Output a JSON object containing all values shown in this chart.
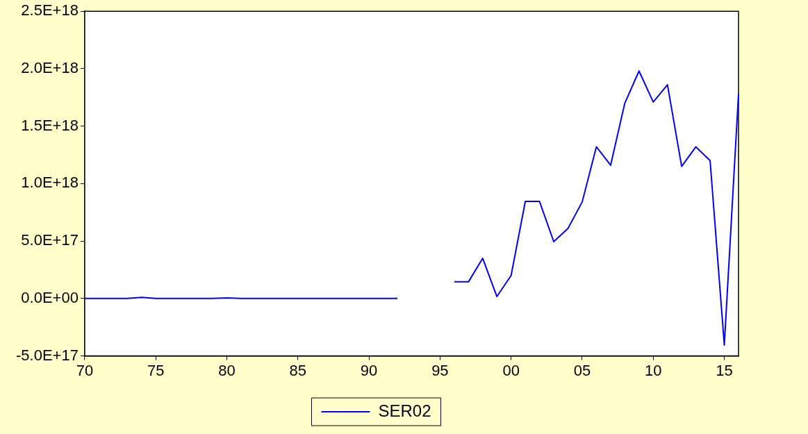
{
  "chart_data": {
    "type": "line",
    "legend": "bottom",
    "marker": "none",
    "line_style": "solid",
    "x": [
      1970,
      1971,
      1972,
      1973,
      1974,
      1975,
      1976,
      1977,
      1978,
      1979,
      1980,
      1981,
      1982,
      1983,
      1984,
      1985,
      1986,
      1987,
      1988,
      1989,
      1990,
      1991,
      1992,
      1993,
      1994,
      1995,
      1996,
      1997,
      1998,
      1999,
      2000,
      2001,
      2002,
      2003,
      2004,
      2005,
      2006,
      2007,
      2008,
      2009,
      2010,
      2011,
      2012,
      2013,
      2014,
      2015,
      2016
    ],
    "series": [
      {
        "name": "SER02",
        "color": "#0000ff",
        "values": [
          0,
          0,
          0,
          0,
          1e+16,
          0,
          0,
          0,
          0,
          0,
          5000000000000000.0,
          0,
          0,
          0,
          0,
          0,
          0,
          0,
          0,
          0,
          0,
          0,
          0,
          null,
          null,
          null,
          1.45e+17,
          1.45e+17,
          3.5e+17,
          1.7e+16,
          2e+17,
          8.45e+17,
          8.45e+17,
          4.95e+17,
          6.1e+17,
          8.4e+17,
          1.32e+18,
          1.16e+18,
          1.7e+18,
          1.98e+18,
          1.71e+18,
          1.86e+18,
          1.15e+18,
          1.32e+18,
          1.2e+18,
          -4.05e+17,
          1.78e+18
        ]
      }
    ],
    "xlim": [
      1970,
      2016
    ],
    "xticks": [
      {
        "value": 1970,
        "label": "70"
      },
      {
        "value": 1975,
        "label": "75"
      },
      {
        "value": 1980,
        "label": "80"
      },
      {
        "value": 1985,
        "label": "85"
      },
      {
        "value": 1990,
        "label": "90"
      },
      {
        "value": 1995,
        "label": "95"
      },
      {
        "value": 2000,
        "label": "00"
      },
      {
        "value": 2005,
        "label": "05"
      },
      {
        "value": 2010,
        "label": "10"
      },
      {
        "value": 2015,
        "label": "15"
      }
    ],
    "ylim": [
      -5e+17,
      2.5e+18
    ],
    "yticks": [
      {
        "value": -5e+17,
        "label": "-5.0E+17"
      },
      {
        "value": 0,
        "label": "0.0E+00"
      },
      {
        "value": 5e+17,
        "label": "5.0E+17"
      },
      {
        "value": 1e+18,
        "label": "1.0E+18"
      },
      {
        "value": 1.5e+18,
        "label": "1.5E+18"
      },
      {
        "value": 2e+18,
        "label": "2.0E+18"
      },
      {
        "value": 2.5e+18,
        "label": "2.5E+18"
      }
    ]
  }
}
